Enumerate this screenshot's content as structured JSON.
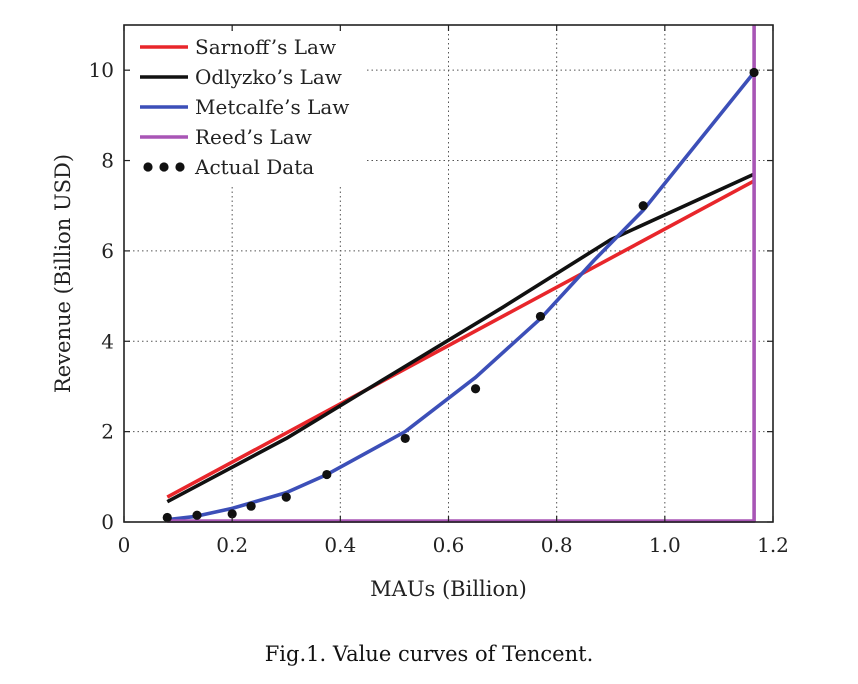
{
  "caption": "Fig.1.   Value curves of Tencent.",
  "chart_data": {
    "type": "line",
    "xlabel": "MAUs (Billion)",
    "ylabel": "Revenue (Billion USD)",
    "xlim": [
      0,
      1.2
    ],
    "ylim": [
      0,
      11
    ],
    "xticks": [
      0,
      0.2,
      0.4,
      0.6,
      0.8,
      1.0,
      1.2
    ],
    "xtick_labels": [
      "0",
      "0.2",
      "0.4",
      "0.6",
      "0.8",
      "1.0",
      "1.2"
    ],
    "yticks": [
      0,
      2,
      4,
      6,
      8,
      10
    ],
    "ytick_labels": [
      "0",
      "2",
      "4",
      "6",
      "8",
      "10"
    ],
    "grid": true,
    "legend_position": "top-left",
    "series": [
      {
        "name": "Sarnoff’s Law",
        "color": "#e8262b",
        "kind": "line",
        "x": [
          0.08,
          1.165
        ],
        "y": [
          0.55,
          7.55
        ]
      },
      {
        "name": "Odlyzko’s Law",
        "color": "#111111",
        "kind": "line",
        "x": [
          0.08,
          0.3,
          0.5,
          0.7,
          0.9,
          1.165
        ],
        "y": [
          0.45,
          1.85,
          3.3,
          4.75,
          6.25,
          7.7
        ]
      },
      {
        "name": "Metcalfe’s Law",
        "color": "#3c4fb8",
        "kind": "line",
        "x": [
          0.08,
          0.13,
          0.2,
          0.3,
          0.375,
          0.52,
          0.65,
          0.77,
          0.87,
          0.96,
          1.165
        ],
        "y": [
          0.05,
          0.12,
          0.3,
          0.65,
          1.05,
          2.0,
          3.2,
          4.5,
          5.8,
          6.9,
          9.95
        ]
      },
      {
        "name": "Reed’s Law",
        "color": "#a855b5",
        "kind": "line",
        "x": [
          0.08,
          1.165,
          1.165
        ],
        "y": [
          0.02,
          0.02,
          11
        ]
      },
      {
        "name": "Actual Data",
        "color": "#111111",
        "kind": "scatter",
        "x": [
          0.08,
          0.135,
          0.2,
          0.235,
          0.3,
          0.375,
          0.52,
          0.65,
          0.77,
          0.96,
          1.165
        ],
        "y": [
          0.1,
          0.15,
          0.18,
          0.35,
          0.55,
          1.05,
          1.85,
          2.95,
          4.55,
          7.0,
          9.95
        ]
      }
    ]
  }
}
